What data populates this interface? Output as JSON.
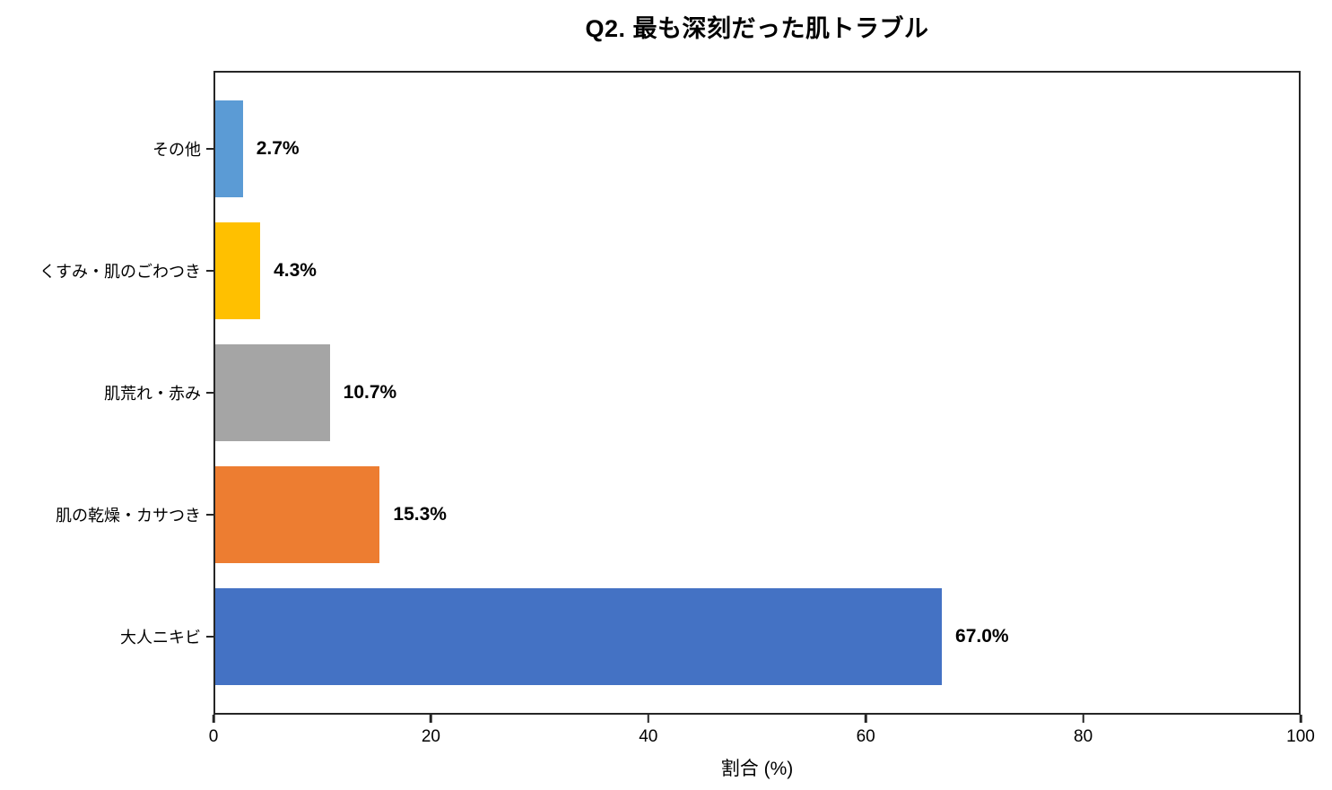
{
  "chart_data": {
    "type": "bar",
    "orientation": "horizontal",
    "title": "Q2. 最も深刻だった肌トラブル",
    "xlabel": "割合 (%)",
    "ylabel": "",
    "categories": [
      "その他",
      "くすみ・肌のごわつき",
      "肌荒れ・赤み",
      "肌の乾燥・カサつき",
      "大人ニキビ"
    ],
    "values": [
      2.7,
      4.3,
      10.7,
      15.3,
      67.0
    ],
    "value_labels": [
      "2.7%",
      "4.3%",
      "10.7%",
      "15.3%",
      "67.0%"
    ],
    "bar_colors": [
      "#5B9BD5",
      "#FFC000",
      "#A5A5A5",
      "#ED7D31",
      "#4472C4"
    ],
    "xlim": [
      0,
      100
    ],
    "x_ticks": [
      0,
      20,
      40,
      60,
      80,
      100
    ],
    "grid": false,
    "legend": null
  },
  "colors": {
    "background": "#ffffff",
    "frame": "#262626",
    "text": "#000000"
  }
}
